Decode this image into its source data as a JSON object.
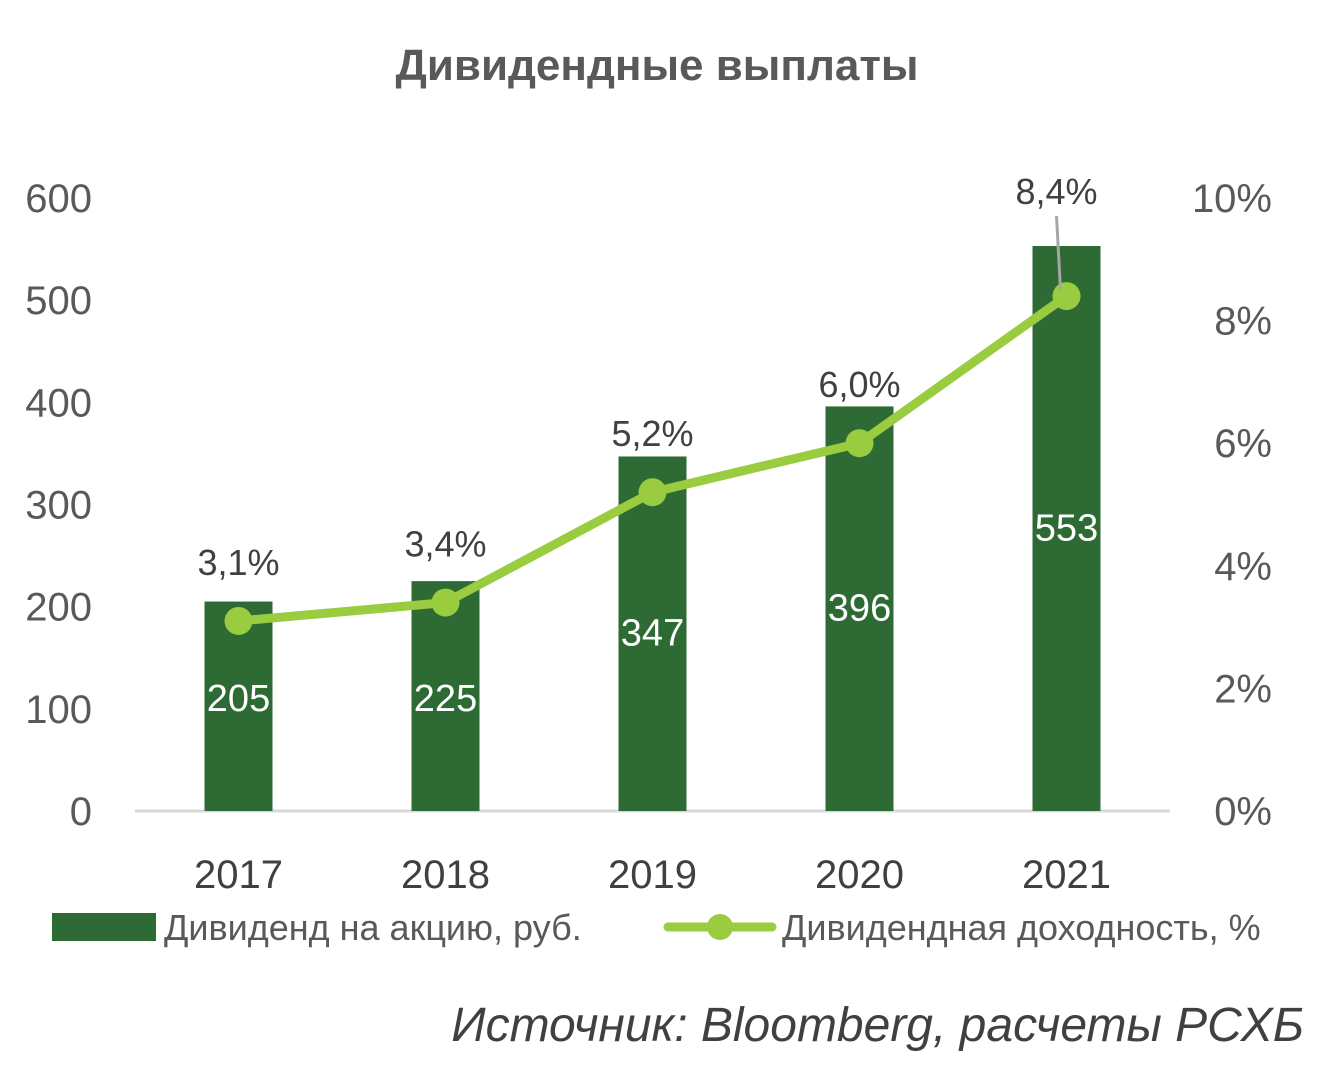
{
  "chart_data": {
    "type": "bar",
    "title": "Дивидендные выплаты",
    "categories": [
      "2017",
      "2018",
      "2019",
      "2020",
      "2021"
    ],
    "series": [
      {
        "name": "Дивиденд на акцию, руб.",
        "kind": "bar",
        "axis": "left",
        "values": [
          205,
          225,
          347,
          396,
          553
        ],
        "labels": [
          "205",
          "225",
          "347",
          "396",
          "553"
        ]
      },
      {
        "name": "Дивидендная доходность, %",
        "kind": "line",
        "axis": "right",
        "values": [
          3.1,
          3.4,
          5.2,
          6.0,
          8.4
        ],
        "labels": [
          "3,1%",
          "3,4%",
          "5,2%",
          "6,0%",
          "8,4%"
        ]
      }
    ],
    "ylim": [
      0,
      600
    ],
    "yticks": [
      "0",
      "100",
      "200",
      "300",
      "400",
      "500",
      "600"
    ],
    "y2lim": [
      0,
      10
    ],
    "y2ticks": [
      "0%",
      "2%",
      "4%",
      "6%",
      "8%",
      "10%"
    ],
    "grid": false,
    "legend_position": "bottom",
    "colors": {
      "bar": "#2e6b34",
      "line": "#99cc3f",
      "text": "#404040"
    }
  },
  "source": "Источник: Bloomberg, расчеты РСХБ"
}
